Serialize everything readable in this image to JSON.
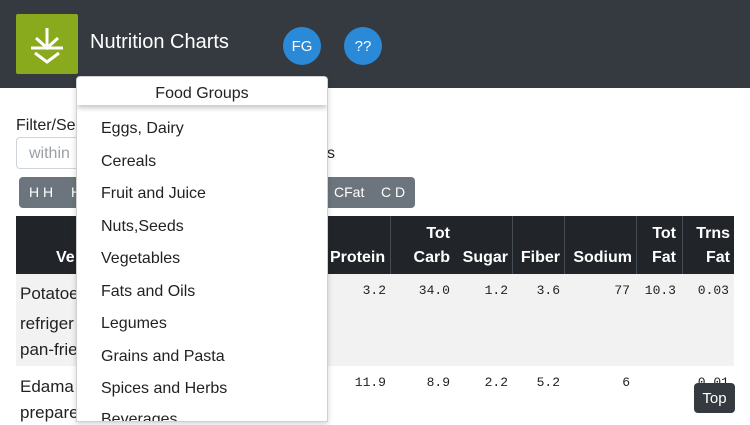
{
  "navbar": {
    "logo_icon": "download-arrow-icon",
    "brand": "Nutrition Charts",
    "fg_label": "FG",
    "help_label": "??",
    "accent_color": "#2a8ad8",
    "logo_color": "#8aaa1e"
  },
  "filter": {
    "label": "Filter/Se",
    "input_text": "within",
    "suffix": "s"
  },
  "sort_buttons": [
    "H H",
    "H",
    "CFat",
    "C D"
  ],
  "table": {
    "header_veg": "Ve",
    "headers": {
      "protein": "Protein",
      "tot_carb_1": "Tot",
      "tot_carb_2": "Carb",
      "sugar": "Sugar",
      "fiber": "Fiber",
      "sodium": "Sodium",
      "tot_fat_1": "Tot",
      "tot_fat_2": "Fat",
      "trns_fat_1": "Trns",
      "trns_fat_2": "Fat"
    },
    "rows": [
      {
        "food_lines": [
          "Potatoe",
          "refriger",
          "pan-frie"
        ],
        "protein": "3.2",
        "carb": "34.0",
        "sugar": "1.2",
        "fiber": "3.6",
        "sodium": "77",
        "fat": "10.3",
        "trans": "0.03"
      },
      {
        "food_lines": [
          "Edama",
          "prepare"
        ],
        "protein": "11.9",
        "carb": "8.9",
        "sugar": "2.2",
        "fiber": "5.2",
        "sodium": "6",
        "fat": "",
        "trans": "0.01"
      }
    ]
  },
  "dropdown": {
    "header": "Food Groups",
    "items": [
      "Eggs, Dairy",
      "Cereals",
      "Fruit and Juice",
      "Nuts,Seeds",
      "Vegetables",
      "Fats and Oils",
      "Legumes",
      "Grains and Pasta",
      "Spices and Herbs",
      "Beverages"
    ]
  },
  "top_button": "Top"
}
